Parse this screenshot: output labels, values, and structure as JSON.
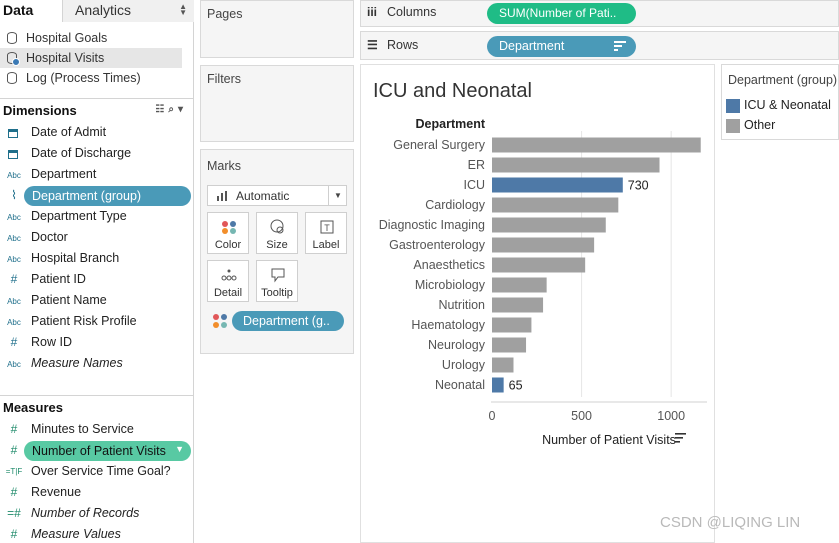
{
  "data_pane": {
    "tabs": {
      "data": "Data",
      "analytics": "Analytics"
    },
    "datasources": [
      {
        "label": "Hospital Goals",
        "icon": "database-icon",
        "active": false
      },
      {
        "label": "Hospital Visits",
        "icon": "database-icon",
        "active": true
      },
      {
        "label": "Log (Process Times)",
        "icon": "database-icon",
        "active": false
      }
    ],
    "dimensions_title": "Dimensions",
    "dimensions": [
      {
        "label": "Date of Admit",
        "type": "date"
      },
      {
        "label": "Date of Discharge",
        "type": "date"
      },
      {
        "label": "Department",
        "type": "string"
      },
      {
        "label": "Department (group)",
        "type": "group",
        "selected": true
      },
      {
        "label": "Department Type",
        "type": "string"
      },
      {
        "label": "Doctor",
        "type": "string"
      },
      {
        "label": "Hospital Branch",
        "type": "string"
      },
      {
        "label": "Patient ID",
        "type": "number"
      },
      {
        "label": "Patient Name",
        "type": "string"
      },
      {
        "label": "Patient Risk Profile",
        "type": "string"
      },
      {
        "label": "Row ID",
        "type": "number"
      },
      {
        "label": "Measure Names",
        "type": "string",
        "italic": true
      }
    ],
    "measures_title": "Measures",
    "measures": [
      {
        "label": "Minutes to Service",
        "type": "number"
      },
      {
        "label": "Number of Patient Visits",
        "type": "number",
        "selected": true
      },
      {
        "label": "Over Service Time Goal?",
        "type": "boolean"
      },
      {
        "label": "Revenue",
        "type": "number"
      },
      {
        "label": "Number of Records",
        "type": "number",
        "italic": true
      },
      {
        "label": "Measure Values",
        "type": "number",
        "italic": true
      }
    ]
  },
  "cards": {
    "pages": "Pages",
    "filters": "Filters",
    "marks": {
      "title": "Marks",
      "mark_type": "Automatic",
      "buttons": [
        {
          "label": "Color",
          "icon": "color-dots-icon"
        },
        {
          "label": "Size",
          "icon": "size-icon"
        },
        {
          "label": "Label",
          "icon": "label-icon"
        },
        {
          "label": "Detail",
          "icon": "detail-icon"
        },
        {
          "label": "Tooltip",
          "icon": "tooltip-icon"
        }
      ],
      "color_pill": "Department (g.."
    }
  },
  "shelves": {
    "columns_label": "Columns",
    "columns_pill": "SUM(Number of Pati..",
    "rows_label": "Rows",
    "rows_pill": "Department"
  },
  "colors": {
    "highlight": "#4e79a7",
    "other": "#a0a0a0",
    "pill_dimension": "#4a9ab8",
    "pill_measure": "#1fbc86"
  },
  "chart_data": {
    "type": "bar",
    "title": "ICU and Neonatal",
    "row_header": "Department",
    "xlabel": "Number of Patient Visits",
    "xlim": [
      0,
      1200
    ],
    "xticks": [
      0,
      500,
      1000
    ],
    "grid": true,
    "orientation": "horizontal",
    "categories": [
      "General Surgery",
      "ER",
      "ICU",
      "Cardiology",
      "Diagnostic Imaging",
      "Gastroenterology",
      "Anaesthetics",
      "Microbiology",
      "Nutrition",
      "Haematology",
      "Neurology",
      "Urology",
      "Neonatal"
    ],
    "values": [
      1165,
      935,
      730,
      705,
      635,
      570,
      520,
      305,
      285,
      220,
      190,
      120,
      65
    ],
    "groups": [
      "Other",
      "Other",
      "ICU & Neonatal",
      "Other",
      "Other",
      "Other",
      "Other",
      "Other",
      "Other",
      "Other",
      "Other",
      "Other",
      "ICU & Neonatal"
    ],
    "data_labels": {
      "ICU": "730",
      "Neonatal": "65"
    }
  },
  "legend": {
    "title": "Department (group)",
    "items": [
      {
        "label": "ICU & Neonatal",
        "color": "#4e79a7"
      },
      {
        "label": "Other",
        "color": "#a0a0a0"
      }
    ]
  },
  "watermark": "CSDN @LIQING LIN"
}
